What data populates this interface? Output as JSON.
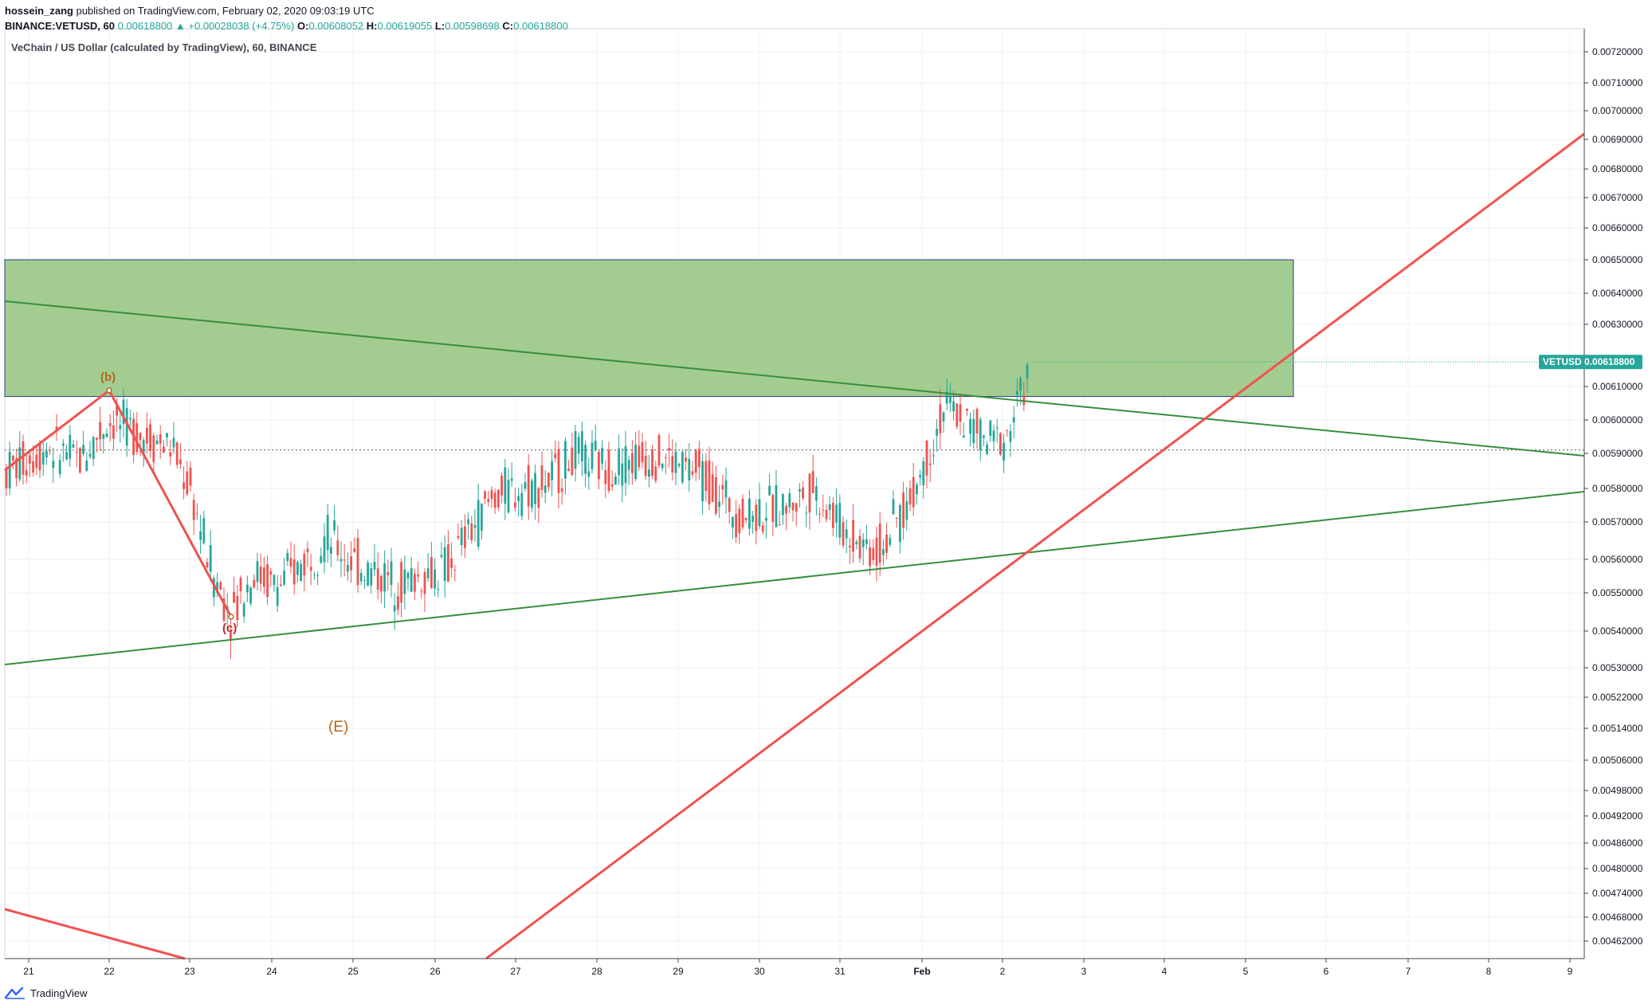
{
  "header": {
    "author": "hossein_zang",
    "published": "published on TradingView.com, February 02, 2020 09:03:19 UTC",
    "symbol_line": "BINANCE:VETUSD, 60",
    "last": "0.00618800",
    "change": "▲ +0.00028038 (+4.75%)",
    "o_label": "O:",
    "o": "0.00608052",
    "h_label": "H:",
    "h": "0.00619055",
    "l_label": "L:",
    "l": "0.00598698",
    "c_label": "C:",
    "c": "0.00618800"
  },
  "chart_title": "VeChain / US Dollar (calculated by TradingView), 60, BINANCE",
  "footer": {
    "brand": "TradingView"
  },
  "colors": {
    "up": "#26a69a",
    "down": "#ef5350",
    "zone": "#93c47d",
    "trend": "#388e3c",
    "red_line": "#ef5350",
    "wave_label": "#b5651d",
    "grid": "#eef0f3"
  },
  "chart_data": {
    "type": "candlestick",
    "symbol": "VETUSD",
    "last_price_label": "VETUSD",
    "last_price": "0.00618800",
    "x_ticks": [
      "21",
      "22",
      "23",
      "24",
      "25",
      "26",
      "27",
      "28",
      "29",
      "30",
      "31",
      "Feb",
      "2",
      "3",
      "4",
      "5",
      "6",
      "7",
      "8",
      "9"
    ],
    "y_ticks": [
      0.0072,
      0.0071,
      0.007,
      0.0069,
      0.0068,
      0.0067,
      0.0066,
      0.0065,
      0.0064,
      0.0063,
      0.0062,
      0.0061,
      0.006,
      0.0059,
      0.0058,
      0.0057,
      0.0056,
      0.0055,
      0.0054,
      0.0053,
      0.00522,
      0.00514,
      0.00506,
      0.00498,
      0.00492,
      0.00486,
      0.0048,
      0.00474,
      0.00468,
      0.00462
    ],
    "log_scale": true,
    "annotations": {
      "wave_b": "(b)",
      "wave_c": "(c)",
      "wave_e": "(E)"
    },
    "zone": {
      "top": 0.0065,
      "bottom": 0.00607
    },
    "dotted_level": 0.00591,
    "grid": true
  }
}
